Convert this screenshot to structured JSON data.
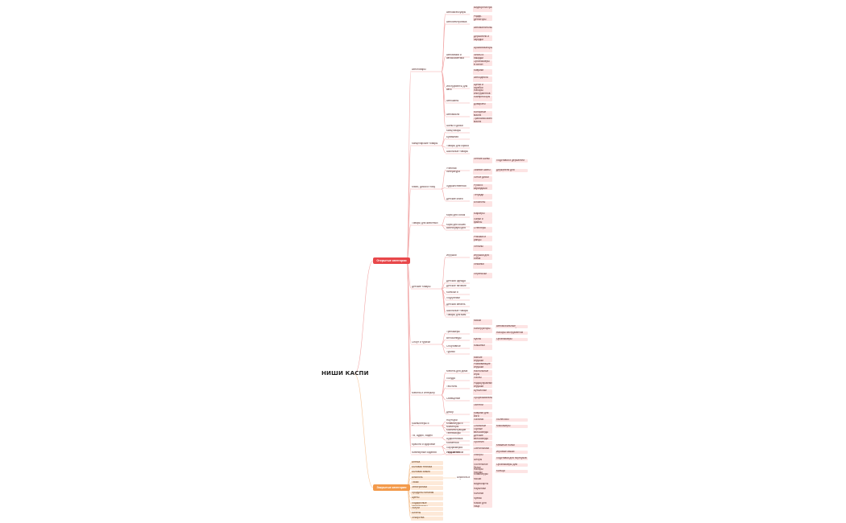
{
  "title": "НИШИ КАСПИ",
  "colors": {
    "open": "#e8474a",
    "closed": "#f39a4b",
    "line_open": "#f2a8a8",
    "line_closed": "#f7c79b",
    "node_open": "#fde4e4",
    "node_closed": "#fde9d8"
  },
  "open": {
    "label": "Открытые категории",
    "cats": [
      "Автотовары",
      "Канцелярские товары",
      "Книги, диски и тому",
      "Товары для животных",
      "Детские товары",
      "Спорт и туризм",
      "Мебель и интерьер",
      "Компьютеры и Периферия",
      "ТВ, Аудио, Видео",
      "Красота и здоровье",
      "Ювелирные изделия"
    ],
    "sub": [
      "Автоаксессуары",
      "Автоэлектроника",
      "Автохимия и автокосметика",
      "Инструменты для авто",
      "Автошины",
      "Автомасла",
      "Шины и диски",
      "Канцтовары",
      "Бумажная продукция",
      "Товары для офиса",
      "Школьные товары",
      "Учебная литература",
      "Художественная литература",
      "Детские книги",
      "Корм для собак",
      "Корм для кошек",
      "Аксессуары для животных",
      "Игрушки",
      "Детская одежда",
      "Детское питание",
      "Коляски и автокресла",
      "Подгузники",
      "Детская мебель",
      "Школьные товары",
      "Товары для мам",
      "Тренажеры",
      "Туризм",
      "Велосипеды",
      "Спортивное питание",
      "Мебель для дома",
      "Освещение",
      "Декор",
      "Текстиль",
      "Посуда",
      "Ноутбуки",
      "Мониторы",
      "Клавиатуры и мыши",
      "Комплектующие",
      "Телевизоры",
      "Аудиотехника",
      "Косметика",
      "Парфюмерия",
      "Уход за телом",
      "Украшения"
    ],
    "leaves": [
      "Видеорегистраторы",
      "Радар-детекторы",
      "Автомагнитолы",
      "Держатели и зарядки",
      "Ароматизаторы",
      "Чехлы и накидки",
      "Органайзеры в салон",
      "Коврики",
      "Автоодеяла",
      "Щетки и скребки",
      "Наборы инструментов",
      "Компрессоры",
      "Домкраты",
      "Моторные масла",
      "Трансмиссионные масла",
      "Летние шины",
      "Зимние шины",
      "Литые диски",
      "Ручки и карандаши",
      "Тетради",
      "Блокноты",
      "Маркеры",
      "Папки и файлы",
      "Степлеры",
      "Рюкзаки и ранцы",
      "Пеналы",
      "Игрушки для собак",
      "Лежанки",
      "Переноски",
      "Миски",
      "Конструкторы",
      "Куклы",
      "Машинки",
      "Мягкие игрушки",
      "Развивающие игрушки",
      "Настольные игры",
      "Пазлы",
      "Радиоуправляемые игрушки",
      "Бутылочки",
      "Прорезыватели",
      "Гантели",
      "Коврики для йоги",
      "Палатки",
      "Спальные мешки",
      "Горные велосипеды",
      "Детские велосипеды",
      "Протеин",
      "Светильники",
      "Люстры",
      "Шторы",
      "Постельное белье",
      "Наборы посуды",
      "Клавиатуры",
      "Мыши",
      "Видеокарты",
      "Наушники",
      "Колонки",
      "Кремы",
      "Маски для лица",
      "Ароматы",
      "Кольца",
      "Серьги"
    ],
    "deep": [
      "Подставки и держатели",
      "Держатели для телефонов",
      "Автомобильные зарядные устройства",
      "Наборы инструментов",
      "Органайзеры",
      "Пылесосы",
      "Массажеры",
      "Книжные полки",
      "Игровые мыши",
      "Подставки для ноутбуков",
      "Органайзеры для косметики",
      "Кольца"
    ]
  },
  "closed": {
    "label": "Закрытые категории",
    "items": [
      "Аптека",
      "Бытовая техника",
      "Бытовая химия",
      "Алкоголь",
      "Табак",
      "Электроника",
      "Продукты питания",
      "Цветы",
      "Подарочные сертификаты",
      "Услуги",
      "Билеты",
      "Лекарства",
      "Оружие",
      "Ставки"
    ],
    "extra": "Алкоголь и табак"
  }
}
